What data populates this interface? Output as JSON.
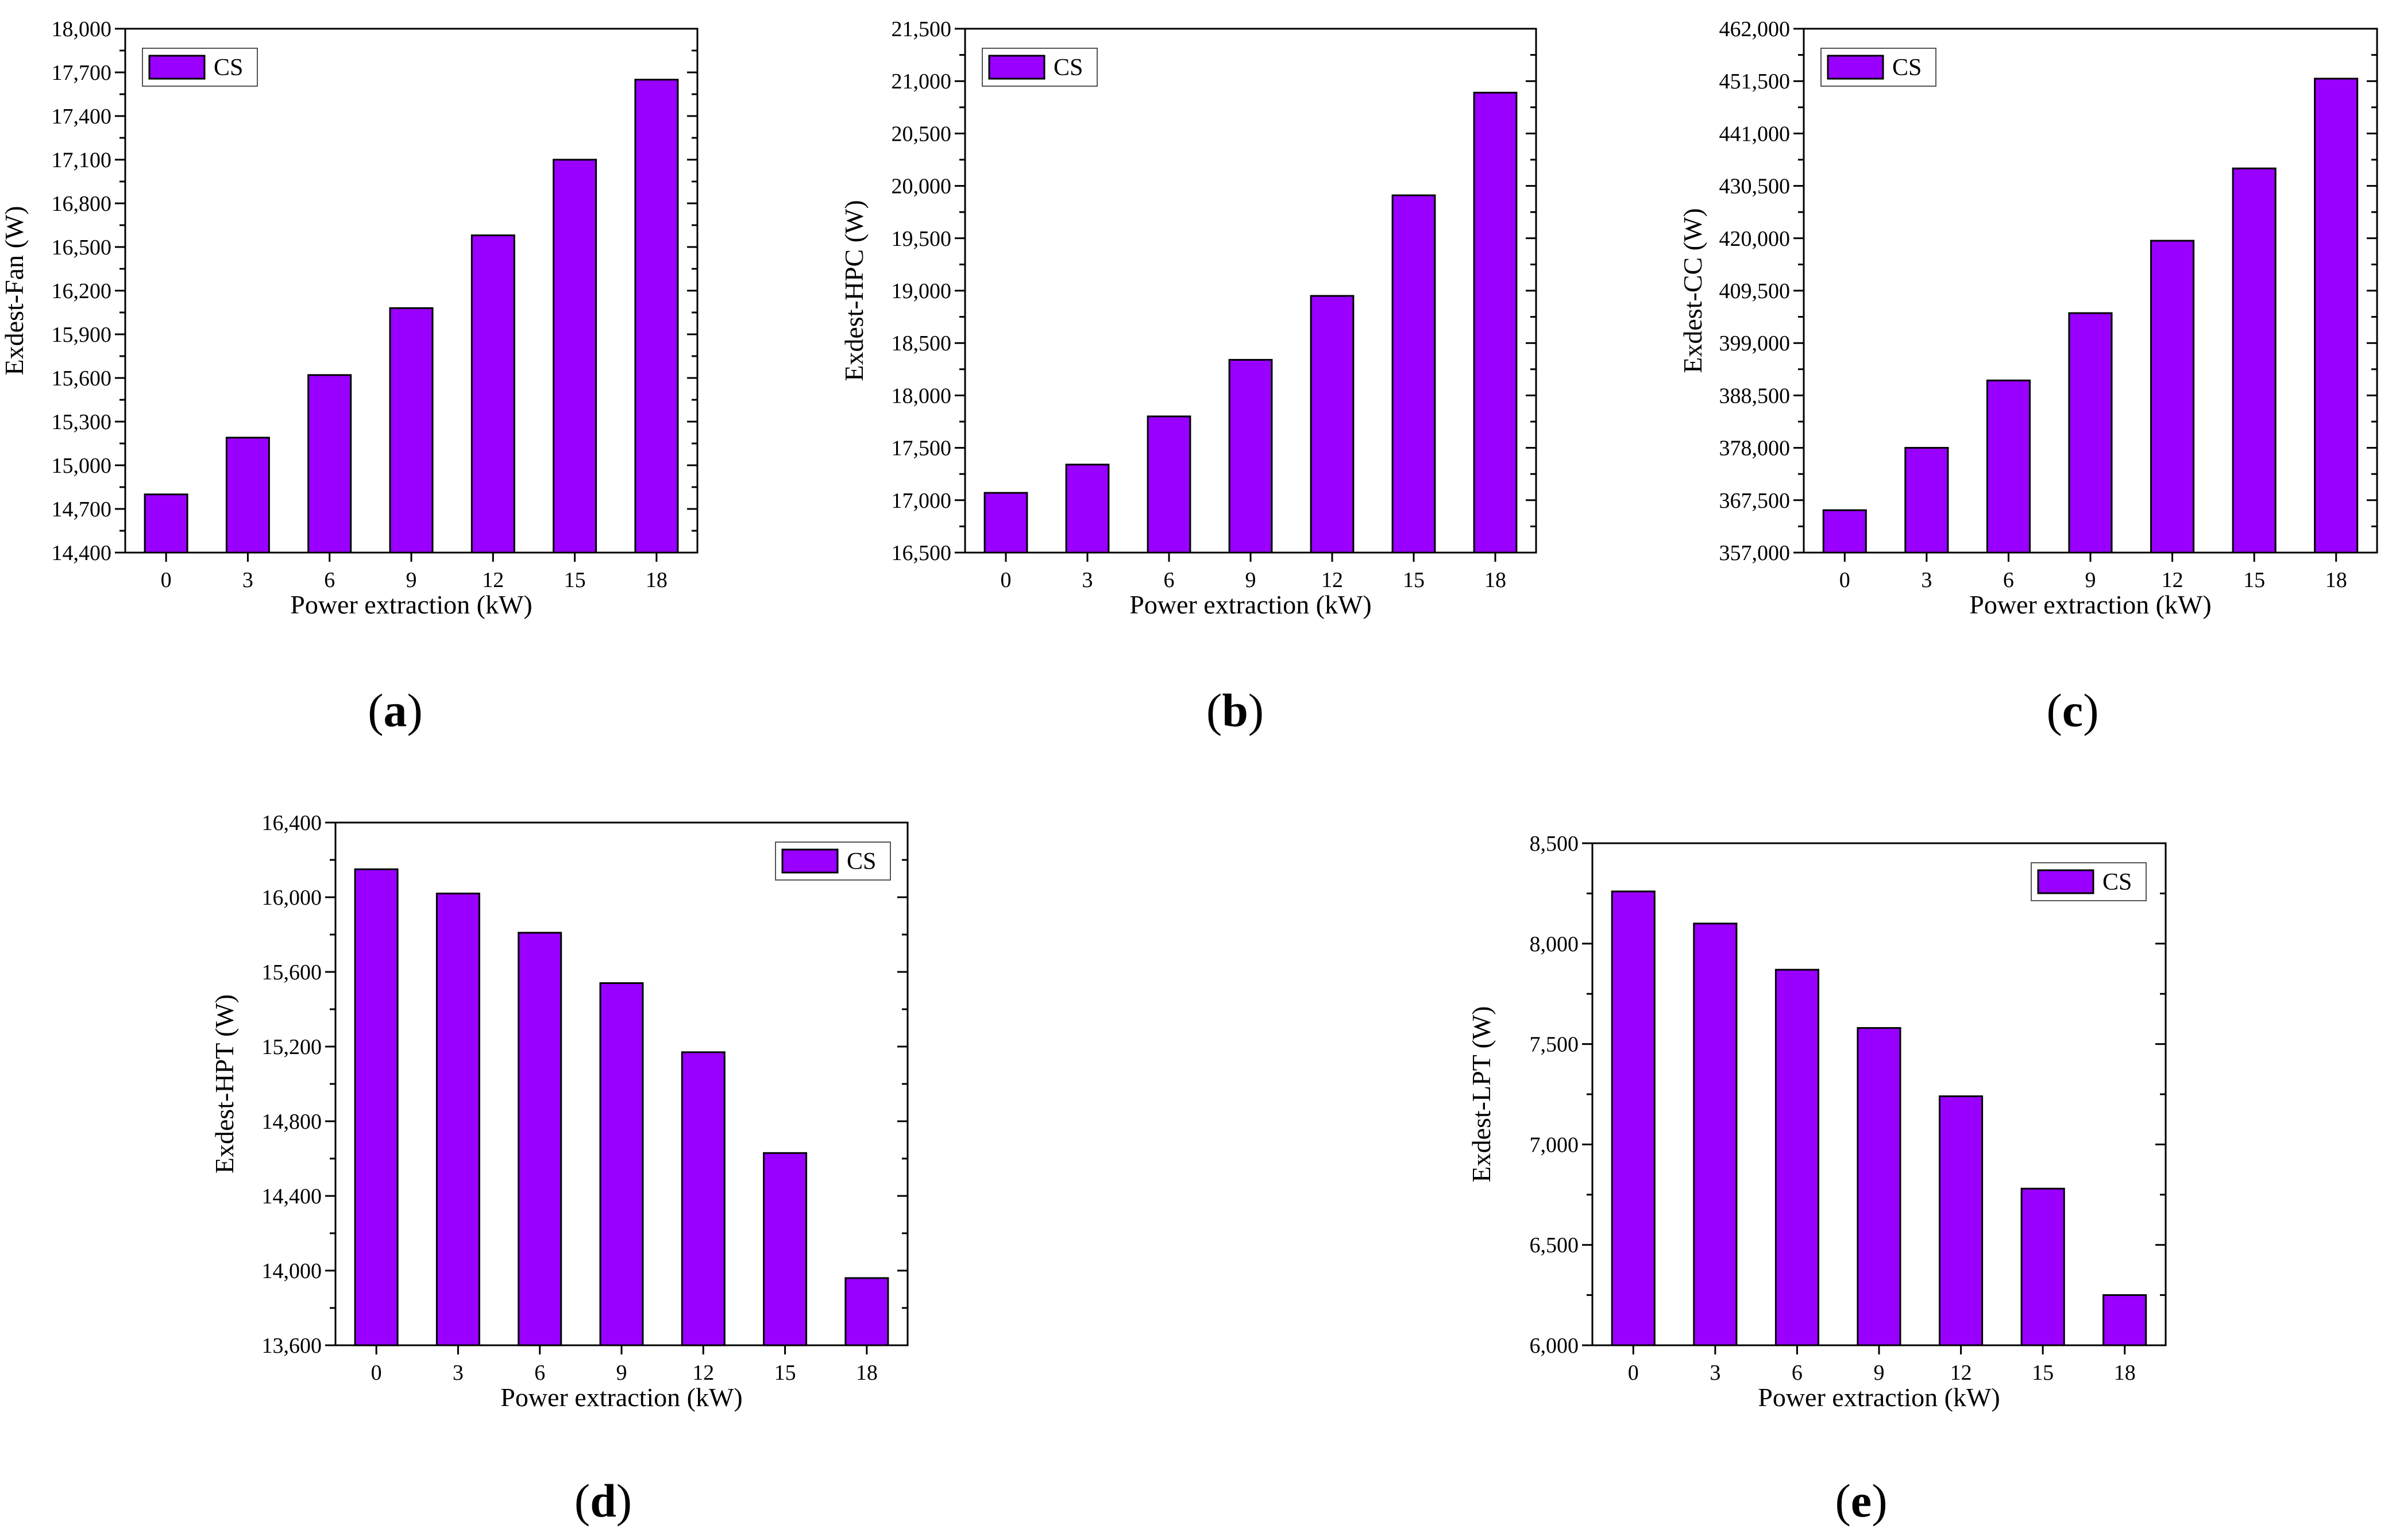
{
  "figure": {
    "bar_color": "#9900FF",
    "bar_stroke": "#000000"
  },
  "chart_data": [
    {
      "panel": "a",
      "type": "bar",
      "categories": [
        "0",
        "3",
        "6",
        "9",
        "12",
        "15",
        "18"
      ],
      "series": [
        {
          "name": "CS",
          "values": [
            14800,
            15190,
            15620,
            16080,
            16580,
            17100,
            17650
          ]
        }
      ],
      "xlabel": "Power extraction (kW)",
      "ylabel": "Exdest-Fan (W)",
      "ylim": [
        14400,
        18000
      ],
      "yticks": [
        14400,
        14700,
        15000,
        15300,
        15600,
        15900,
        16200,
        16500,
        16800,
        17100,
        17400,
        17700,
        18000
      ],
      "ytick_labels": [
        "14,400",
        "14,700",
        "15,000",
        "15,300",
        "15,600",
        "15,900",
        "16,200",
        "16,500",
        "16,800",
        "17,100",
        "17,400",
        "17,700",
        "18,000"
      ],
      "legend": "CS",
      "legend_position": "top-left"
    },
    {
      "panel": "b",
      "type": "bar",
      "categories": [
        "0",
        "3",
        "6",
        "9",
        "12",
        "15",
        "18"
      ],
      "series": [
        {
          "name": "CS",
          "values": [
            17070,
            17340,
            17800,
            18340,
            18950,
            19910,
            20890
          ]
        }
      ],
      "xlabel": "Power extraction (kW)",
      "ylabel": "Exdest-HPC (W)",
      "ylim": [
        16500,
        21500
      ],
      "yticks": [
        16500,
        17000,
        17500,
        18000,
        18500,
        19000,
        19500,
        20000,
        20500,
        21000,
        21500
      ],
      "ytick_labels": [
        "16,500",
        "17,000",
        "17,500",
        "18,000",
        "18,500",
        "19,000",
        "19,500",
        "20,000",
        "20,500",
        "21,000",
        "21,500"
      ],
      "legend": "CS",
      "legend_position": "top-left"
    },
    {
      "panel": "c",
      "type": "bar",
      "categories": [
        "0",
        "3",
        "6",
        "9",
        "12",
        "15",
        "18"
      ],
      "series": [
        {
          "name": "CS",
          "values": [
            365500,
            378000,
            391500,
            405000,
            419500,
            434000,
            452000
          ]
        }
      ],
      "xlabel": "Power extraction (kW)",
      "ylabel": "Exdest-CC (W)",
      "ylim": [
        357000,
        462000
      ],
      "yticks": [
        357000,
        367500,
        378000,
        388500,
        399000,
        409500,
        420000,
        430500,
        441000,
        451500,
        462000
      ],
      "ytick_labels": [
        "357,000",
        "367,500",
        "378,000",
        "388,500",
        "399,000",
        "409,500",
        "420,000",
        "430,500",
        "441,000",
        "451,500",
        "462,000"
      ],
      "legend": "CS",
      "legend_position": "top-left"
    },
    {
      "panel": "d",
      "type": "bar",
      "categories": [
        "0",
        "3",
        "6",
        "9",
        "12",
        "15",
        "18"
      ],
      "series": [
        {
          "name": "CS",
          "values": [
            16150,
            16020,
            15810,
            15540,
            15170,
            14630,
            13960
          ]
        }
      ],
      "xlabel": "Power extraction (kW)",
      "ylabel": "Exdest-HPT (W)",
      "ylim": [
        13600,
        16400
      ],
      "yticks": [
        13600,
        14000,
        14400,
        14800,
        15200,
        15600,
        16000,
        16400
      ],
      "ytick_labels": [
        "13,600",
        "14,000",
        "14,400",
        "14,800",
        "15,200",
        "15,600",
        "16,000",
        "16,400"
      ],
      "legend": "CS",
      "legend_position": "top-right"
    },
    {
      "panel": "e",
      "type": "bar",
      "categories": [
        "0",
        "3",
        "6",
        "9",
        "12",
        "15",
        "18"
      ],
      "series": [
        {
          "name": "CS",
          "values": [
            8260,
            8100,
            7870,
            7580,
            7240,
            6780,
            6250
          ]
        }
      ],
      "xlabel": "Power extraction (kW)",
      "ylabel": "Exdest-LPT (W)",
      "ylim": [
        6000,
        8500
      ],
      "yticks": [
        6000,
        6500,
        7000,
        7500,
        8000,
        8500
      ],
      "ytick_labels": [
        "6,000",
        "6,500",
        "7,000",
        "7,500",
        "8,000",
        "8,500"
      ],
      "legend": "CS",
      "legend_position": "top-right"
    }
  ]
}
